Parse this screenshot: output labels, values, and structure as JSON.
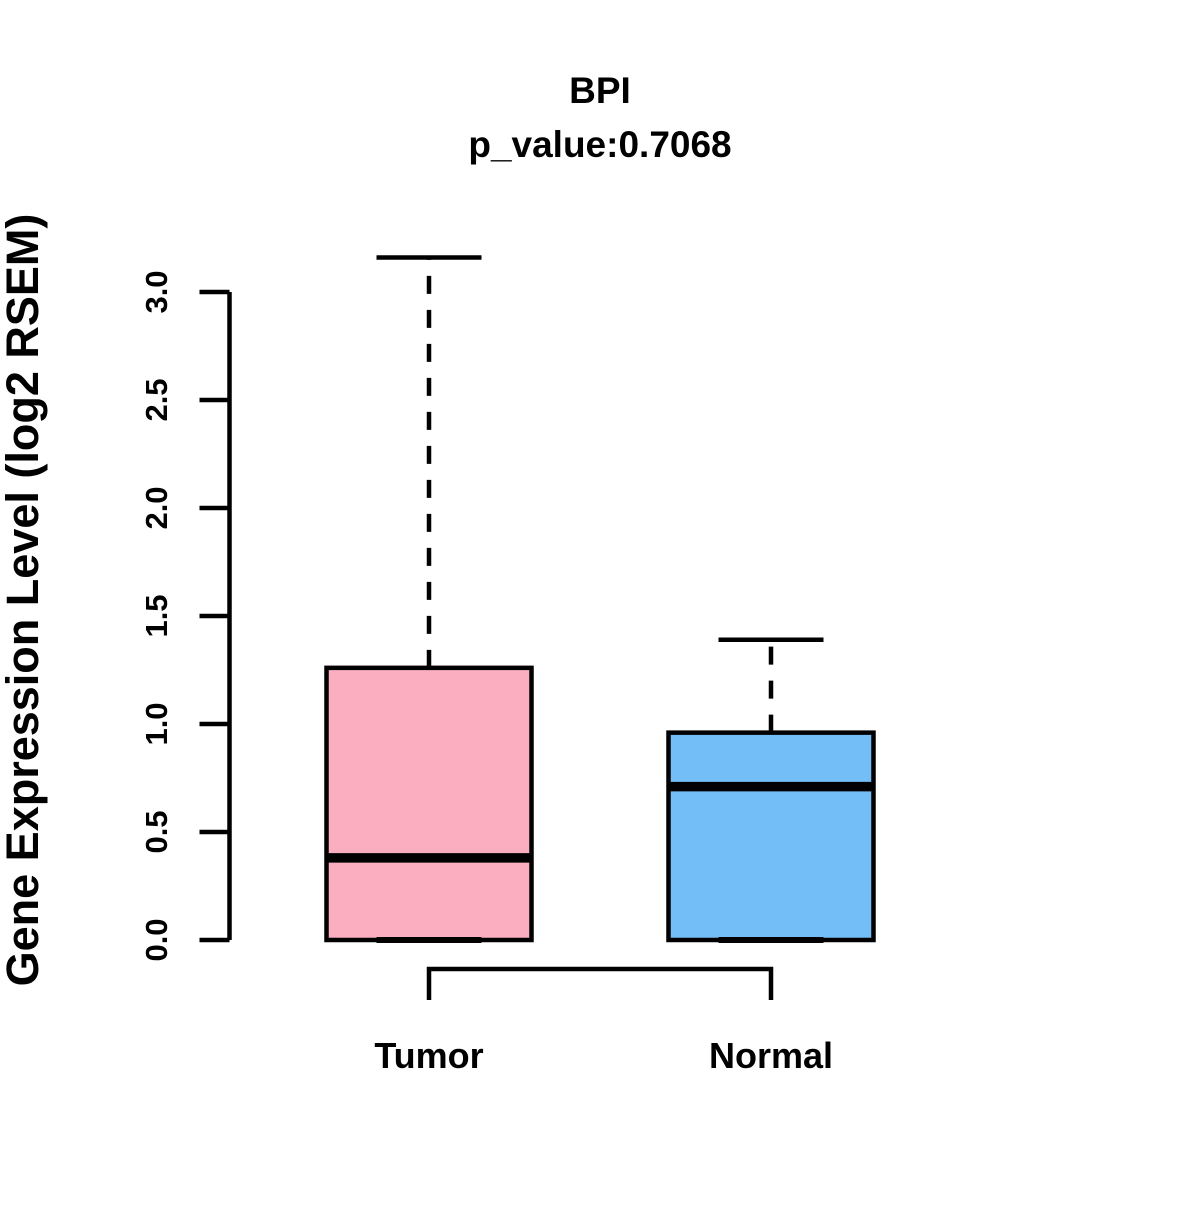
{
  "header": {
    "title": "BPI",
    "subtitle": "p_value:0.7068"
  },
  "chart_data": {
    "type": "boxplot",
    "title": "BPI",
    "subtitle": "p_value:0.7068",
    "ylabel": "Gene Expression Level (log2 RSEM)",
    "xlabel": "",
    "categories": [
      "Tumor",
      "Normal"
    ],
    "series": [
      {
        "name": "Tumor",
        "min": 0.0,
        "q1": 0.0,
        "median": 0.38,
        "q3": 1.26,
        "max": 3.16,
        "fill_color": "#FCAEC1"
      },
      {
        "name": "Normal",
        "min": 0.0,
        "q1": 0.0,
        "median": 0.71,
        "q3": 0.96,
        "max": 1.39,
        "fill_color": "#74BEF8"
      }
    ],
    "ytick_values": [
      0.0,
      0.5,
      1.0,
      1.5,
      2.0,
      2.5,
      3.0
    ],
    "ytick_labels": [
      "0.0",
      "0.5",
      "1.0",
      "1.5",
      "2.0",
      "2.5",
      "3.0"
    ],
    "ylim": [
      0.0,
      3.0
    ],
    "grid": false,
    "legend": "none",
    "whisker_style": "dashed",
    "line_color": "#000000",
    "background_color": "#FFFFFF"
  }
}
